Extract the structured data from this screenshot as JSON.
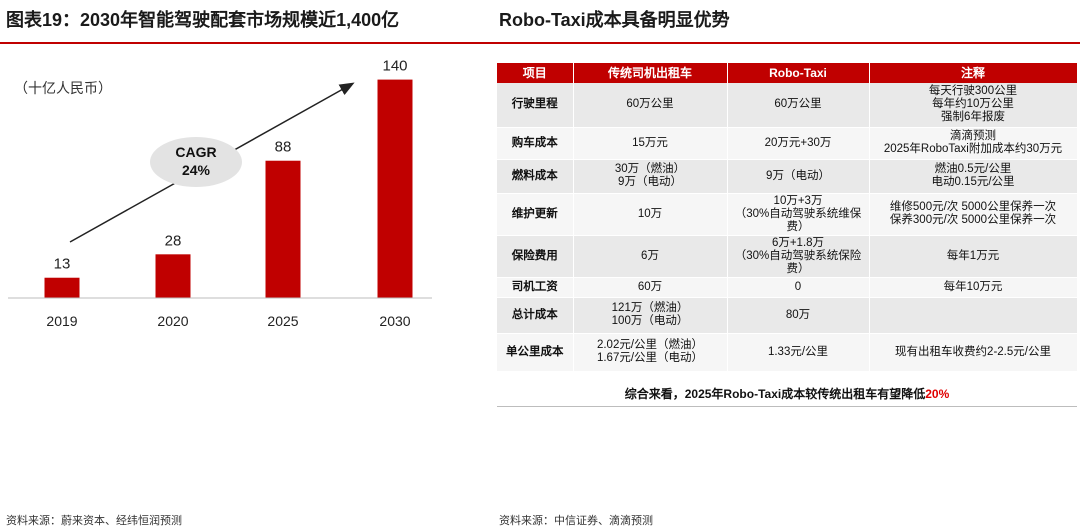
{
  "left_panel": {
    "title": "图表19：2030年智能驾驶配套市场规模近1,400亿",
    "source": "资料来源：蔚来资本、经纬恒润预测"
  },
  "right_panel": {
    "title": "Robo-Taxi成本具备明显优势",
    "source": "资料来源：中信证券、滴滴预测"
  },
  "colors": {
    "accent": "#c00000",
    "bar": "#c00000",
    "highlight": "#e00000"
  },
  "chart_data": {
    "type": "bar",
    "unit_label": "（十亿人民币）",
    "categories": [
      "2019",
      "2020",
      "2025",
      "2030"
    ],
    "values": [
      13,
      28,
      88,
      140
    ],
    "value_labels": [
      "13",
      "28",
      "88",
      "140"
    ],
    "ylim": [
      0,
      150
    ],
    "annotation": {
      "line1": "CAGR",
      "line2": "24%"
    },
    "grid": false,
    "legend": "none"
  },
  "table": {
    "headers": [
      "项目",
      "传统司机出租车",
      "Robo-Taxi",
      "注释"
    ],
    "rows": [
      [
        "行驶里程",
        "60万公里",
        "60万公里",
        "每天行驶300公里\n每年约10万公里\n强制6年报废"
      ],
      [
        "购车成本",
        "15万元",
        "20万元+30万",
        "滴滴预测\n2025年RoboTaxi附加成本约30万元"
      ],
      [
        "燃料成本",
        "30万（燃油）\n9万（电动）",
        "9万（电动）",
        "燃油0.5元/公里\n电动0.15元/公里"
      ],
      [
        "维护更新",
        "10万",
        "10万+3万\n（30%自动驾驶系统维保费）",
        "维修500元/次 5000公里保养一次\n保养300元/次 5000公里保养一次"
      ],
      [
        "保险费用",
        "6万",
        "6万+1.8万\n（30%自动驾驶系统保险费）",
        "每年1万元"
      ],
      [
        "司机工资",
        "60万",
        "0",
        "每年10万元"
      ],
      [
        "总计成本",
        "121万（燃油）\n100万（电动）",
        "80万",
        ""
      ],
      [
        "单公里成本",
        "2.02元/公里（燃油）\n1.67元/公里（电动）",
        "1.33元/公里",
        "现有出租车收费约2-2.5元/公里"
      ]
    ],
    "summary_prefix": "综合来看，2025年Robo-Taxi成本较传统出租车有望降低",
    "summary_highlight": "20%"
  }
}
